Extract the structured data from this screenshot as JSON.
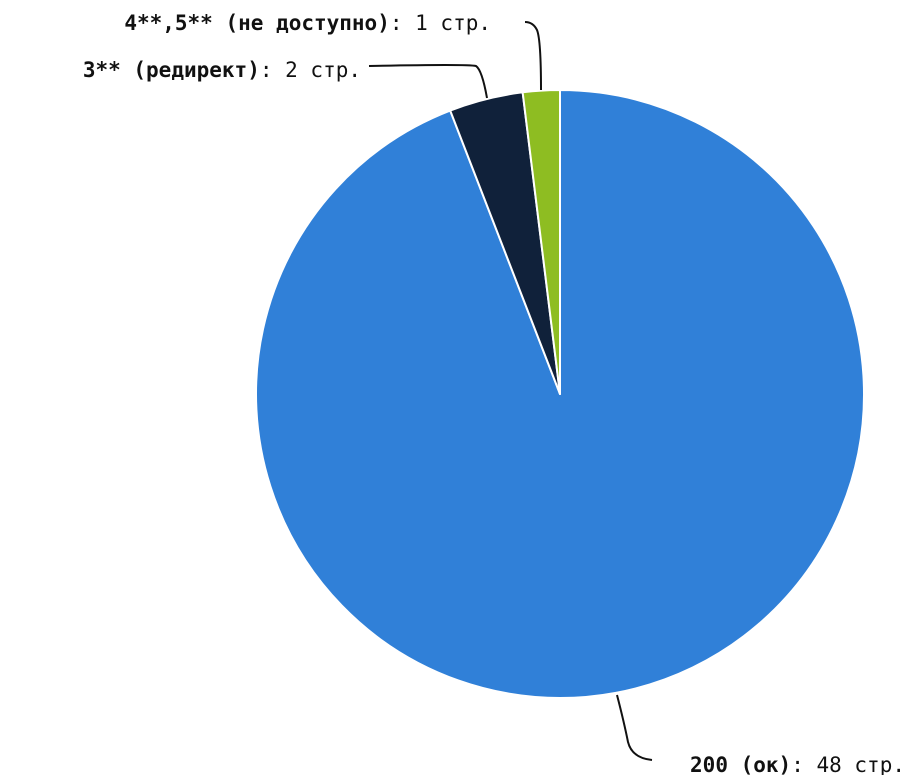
{
  "chart_data": {
    "type": "pie",
    "title": "",
    "slices": [
      {
        "name": "200 (ок)",
        "value": 48,
        "value_text": "48 стр.",
        "color": "#3080d8"
      },
      {
        "name": "3** (редирект)",
        "value": 2,
        "value_text": "2 стр.",
        "color": "#10213a"
      },
      {
        "name": "4**,5** (не доступно)",
        "value": 1,
        "value_text": "1 стр.",
        "color": "#8ebd22"
      }
    ],
    "start": "12 o'clock",
    "direction": "clockwise",
    "legend": "none",
    "data_labels": "outside with leader lines"
  }
}
